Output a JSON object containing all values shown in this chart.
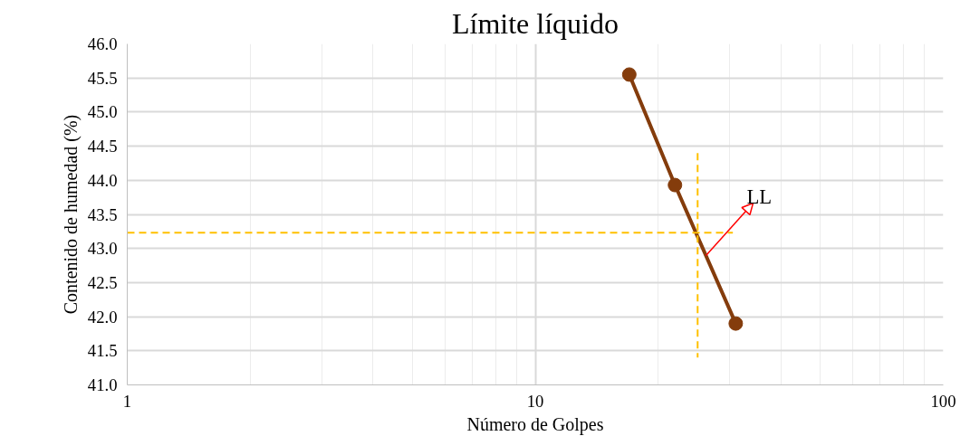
{
  "chart_data": {
    "type": "line",
    "title": "Límite líquido",
    "xlabel": "Número de Golpes",
    "ylabel": "Contenido de humedad (%)",
    "log": "x",
    "grid": true,
    "marker": "circle",
    "line_style": "solid",
    "xlim": [
      1,
      100
    ],
    "xticks": [
      1,
      10,
      100
    ],
    "ylim": [
      41.0,
      46.0
    ],
    "yticks": [
      {
        "value": 41,
        "label": "41.0"
      },
      {
        "value": 41.5,
        "label": "41.5"
      },
      {
        "value": 42,
        "label": "42.0"
      },
      {
        "value": 42.5,
        "label": "42.5"
      },
      {
        "value": 43,
        "label": "43.0"
      },
      {
        "value": 43.5,
        "label": "43.5"
      },
      {
        "value": 44,
        "label": "44.0"
      },
      {
        "value": 44.5,
        "label": "44.5"
      },
      {
        "value": 45,
        "label": "45.0"
      },
      {
        "value": 45.5,
        "label": "45.5"
      },
      {
        "value": 46,
        "label": "46.0"
      }
    ],
    "series": [
      {
        "color": "#843c0c",
        "x": [
          17,
          22,
          31
        ],
        "values": [
          45.55,
          43.93,
          41.9
        ]
      },
      {
        "color": "#ffc000",
        "x": [
          1,
          30.5
        ],
        "values": [
          43.23,
          43.23
        ],
        "marker": "none",
        "line_style": "dashed"
      },
      {
        "color": "#ffc000",
        "x": [
          25,
          25
        ],
        "values": [
          44.4,
          41.4
        ],
        "marker": "none",
        "line_style": "dashed"
      }
    ],
    "annotations": [
      "LL"
    ]
  }
}
